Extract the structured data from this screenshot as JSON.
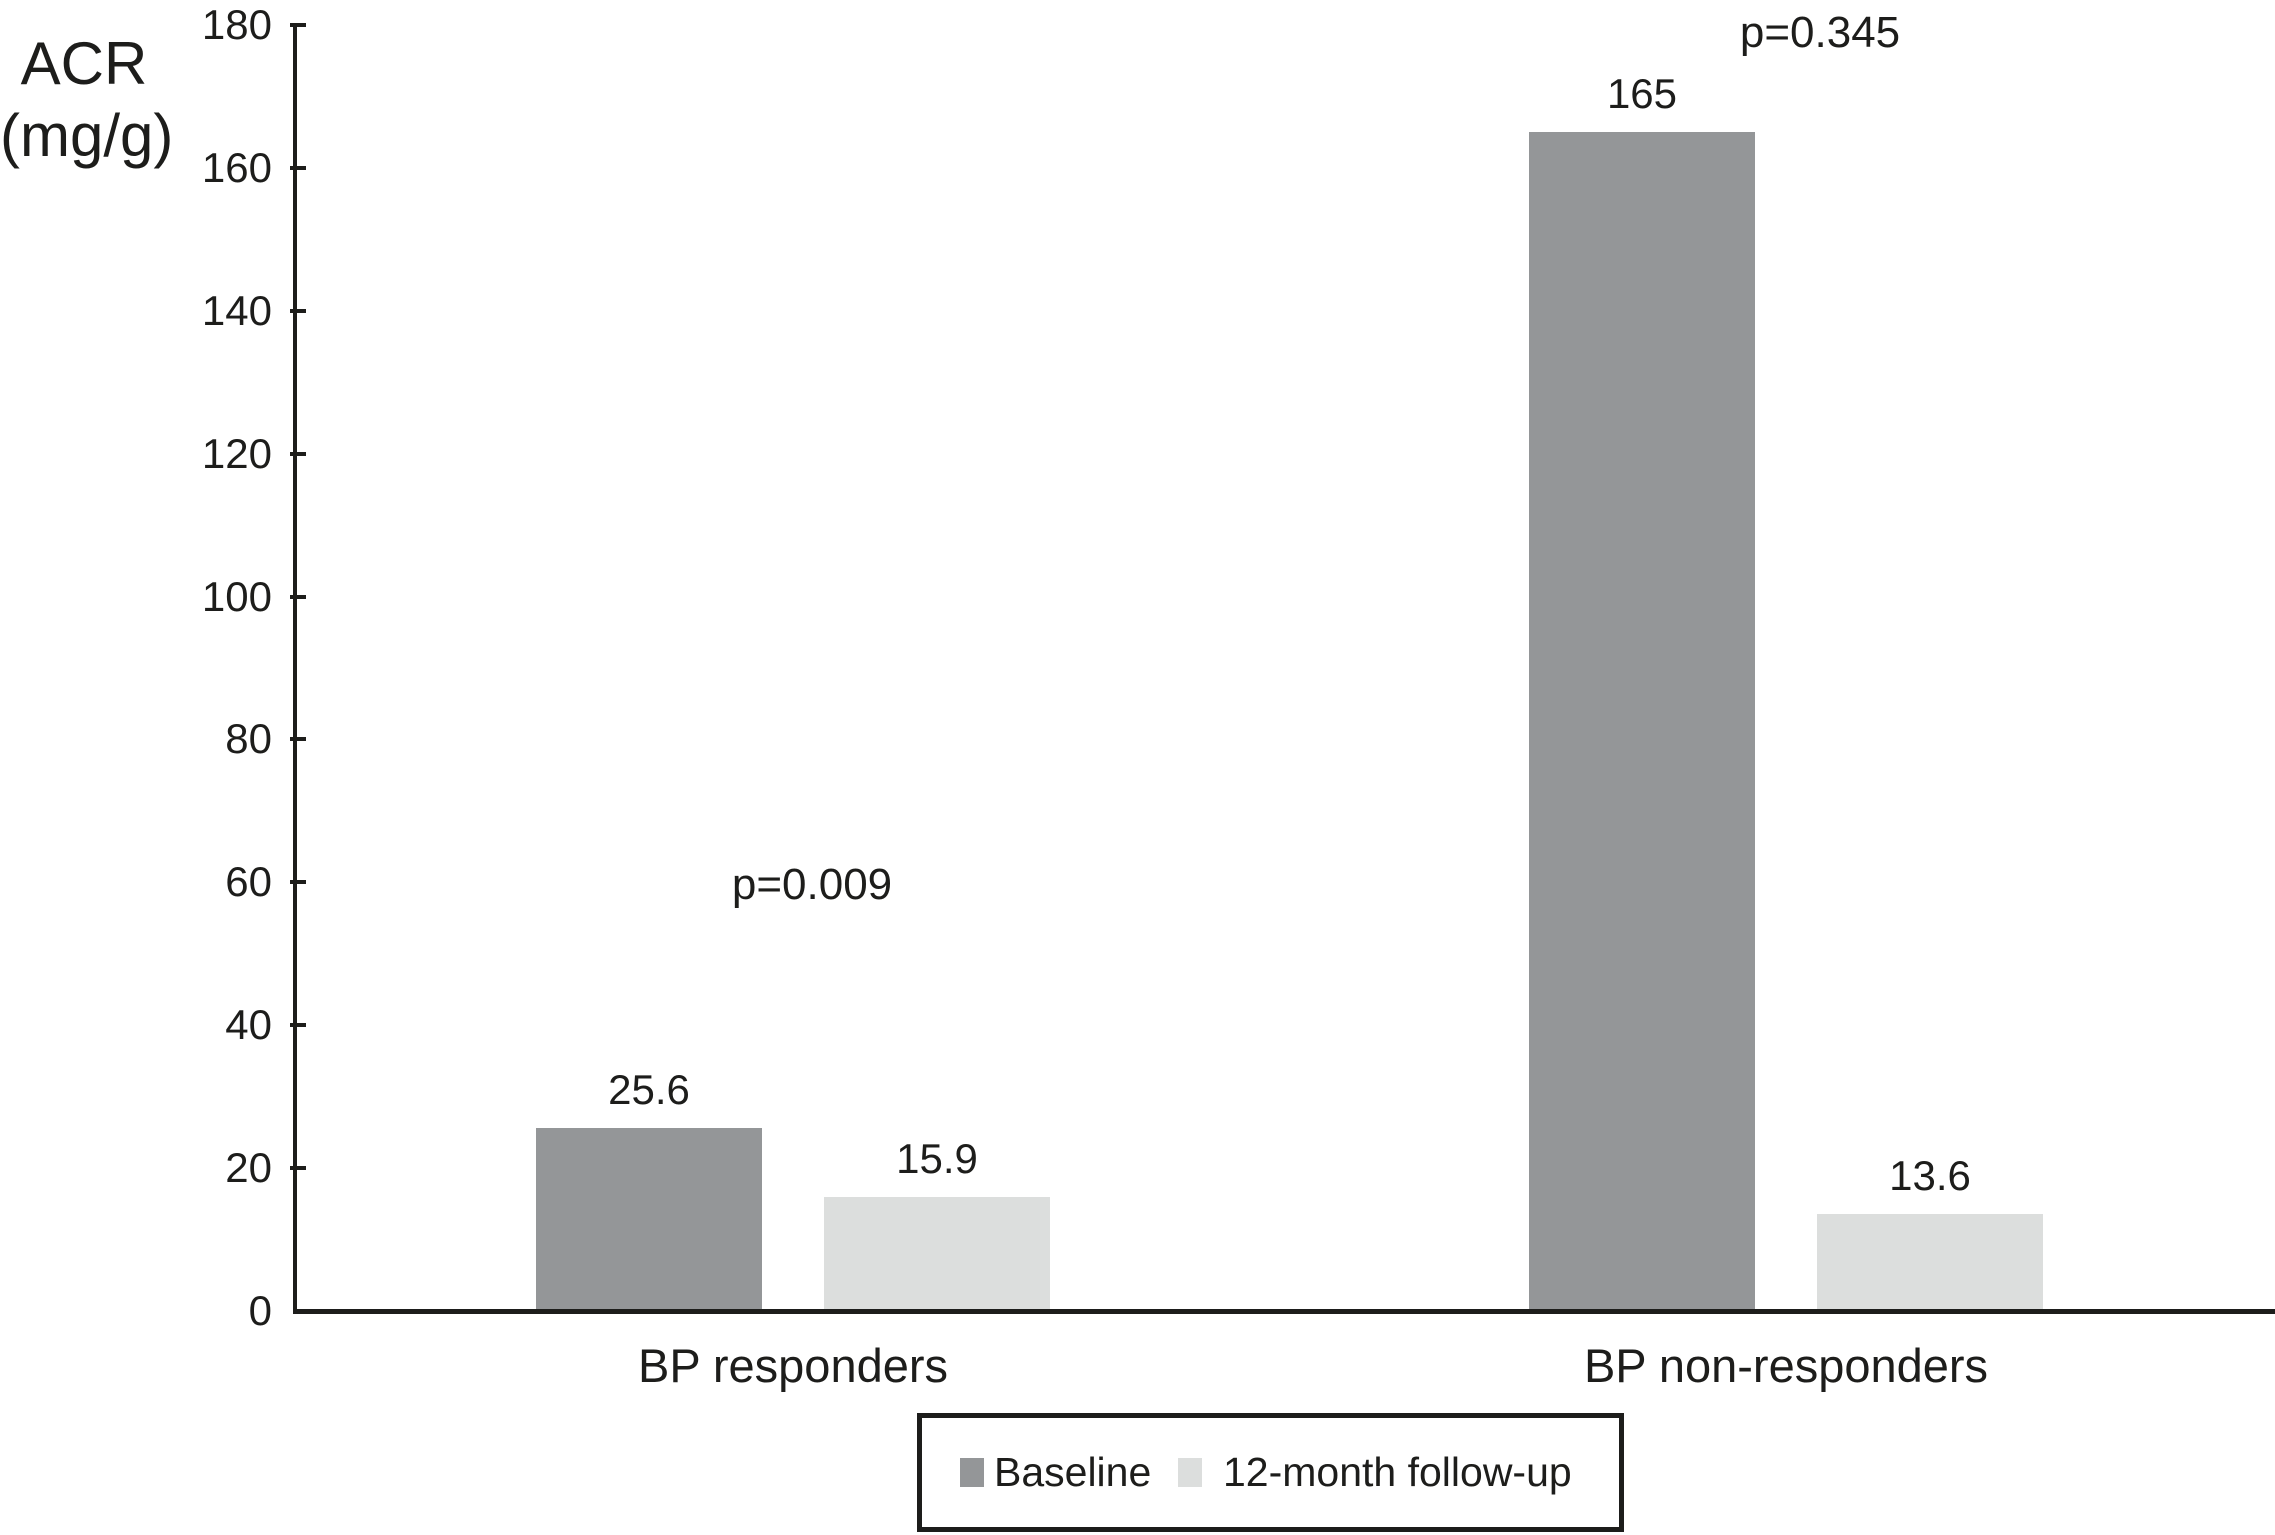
{
  "chart_data": {
    "type": "bar",
    "title": "",
    "xlabel": "",
    "ylabel": "ACR (mg/g)",
    "ylabel_lines": [
      "ACR",
      "(mg/g)"
    ],
    "ylim": [
      0,
      180
    ],
    "ytick_step": 20,
    "ytick_labels": [
      "0",
      "20",
      "40",
      "60",
      "80",
      "100",
      "120",
      "140",
      "160",
      "180"
    ],
    "grid": false,
    "legend_position": "bottom",
    "categories": [
      "BP responders",
      "BP non-responders"
    ],
    "series": [
      {
        "name": "Baseline",
        "color": "#949698",
        "values": [
          25.6,
          165
        ]
      },
      {
        "name": "12-month follow-up",
        "color": "#dcdedd",
        "values": [
          15.9,
          13.6
        ]
      }
    ],
    "value_labels": [
      [
        "25.6",
        "165"
      ],
      [
        "15.9",
        "13.6"
      ]
    ],
    "p_values": [
      "p=0.009",
      "p=0.345"
    ],
    "axis_color": "#1d1d1b",
    "background_color": "#ffffff"
  }
}
